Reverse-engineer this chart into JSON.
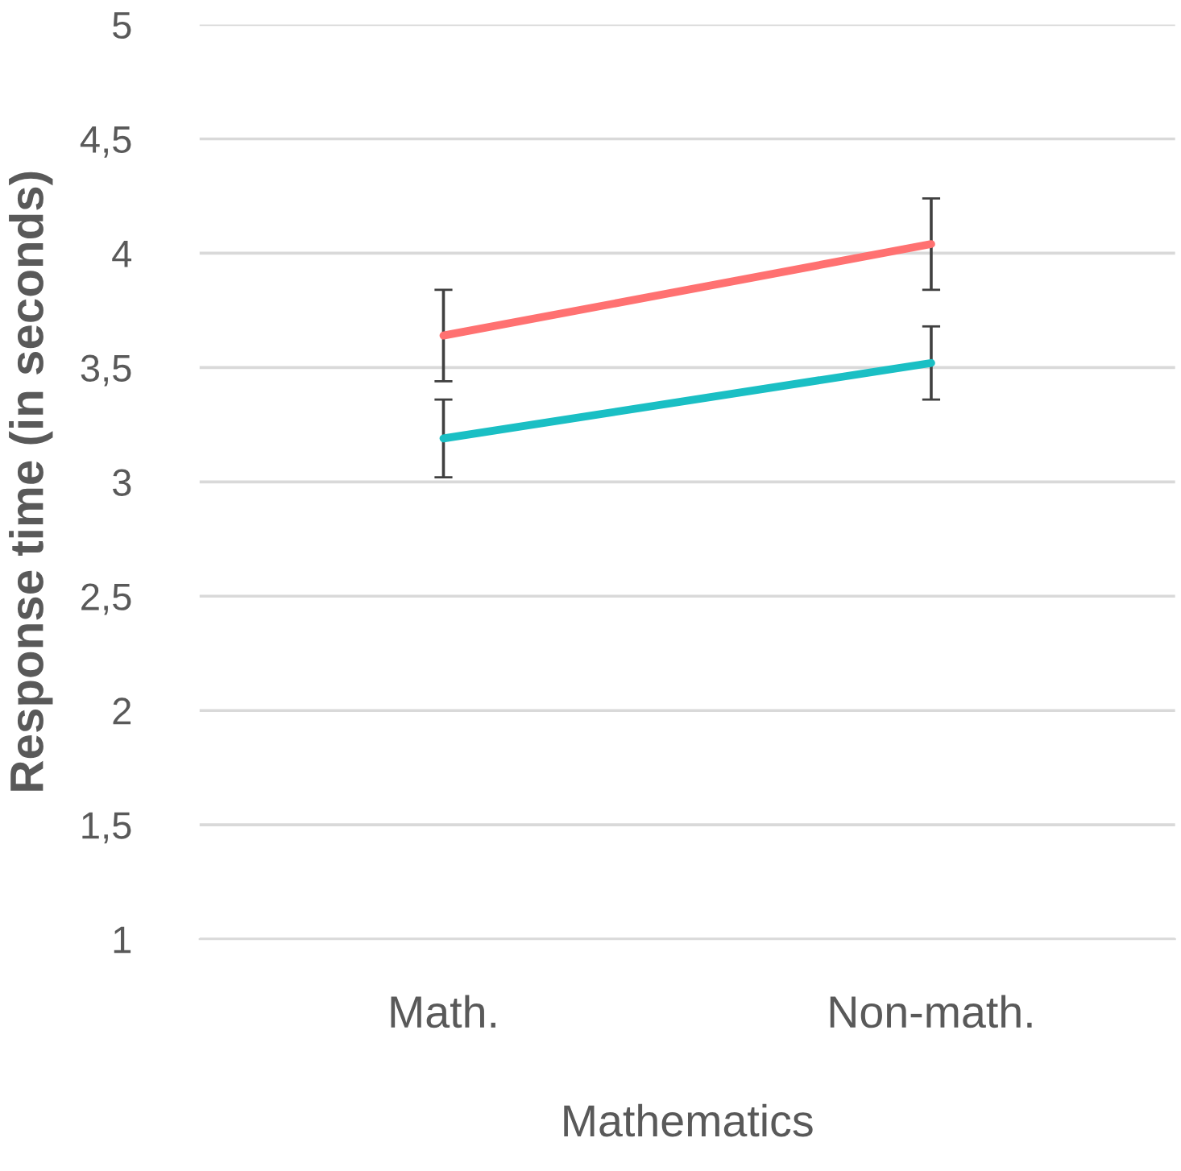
{
  "chart_data": {
    "type": "line",
    "ylabel": "Response time (in seconds)",
    "xlabel": "Mathematics",
    "categories": [
      "Math.",
      "Non-math."
    ],
    "series": [
      {
        "color": "#ff7171",
        "values": [
          3.64,
          4.04
        ],
        "errors": [
          0.2,
          0.2
        ]
      },
      {
        "color": "#1abfc4",
        "values": [
          3.19,
          3.52
        ],
        "errors": [
          0.17,
          0.16
        ]
      }
    ],
    "ylim": [
      1,
      5
    ],
    "yticks": [
      1,
      {
        "value": 1.5,
        "label": "1,5"
      },
      2,
      {
        "value": 2.5,
        "label": "2,5"
      },
      3,
      {
        "value": 3.5,
        "label": "3,5"
      },
      4,
      {
        "value": 4.5,
        "label": "4,5"
      },
      5
    ],
    "grid": "y",
    "legend": false,
    "marker": "none",
    "line_style": "solid"
  }
}
